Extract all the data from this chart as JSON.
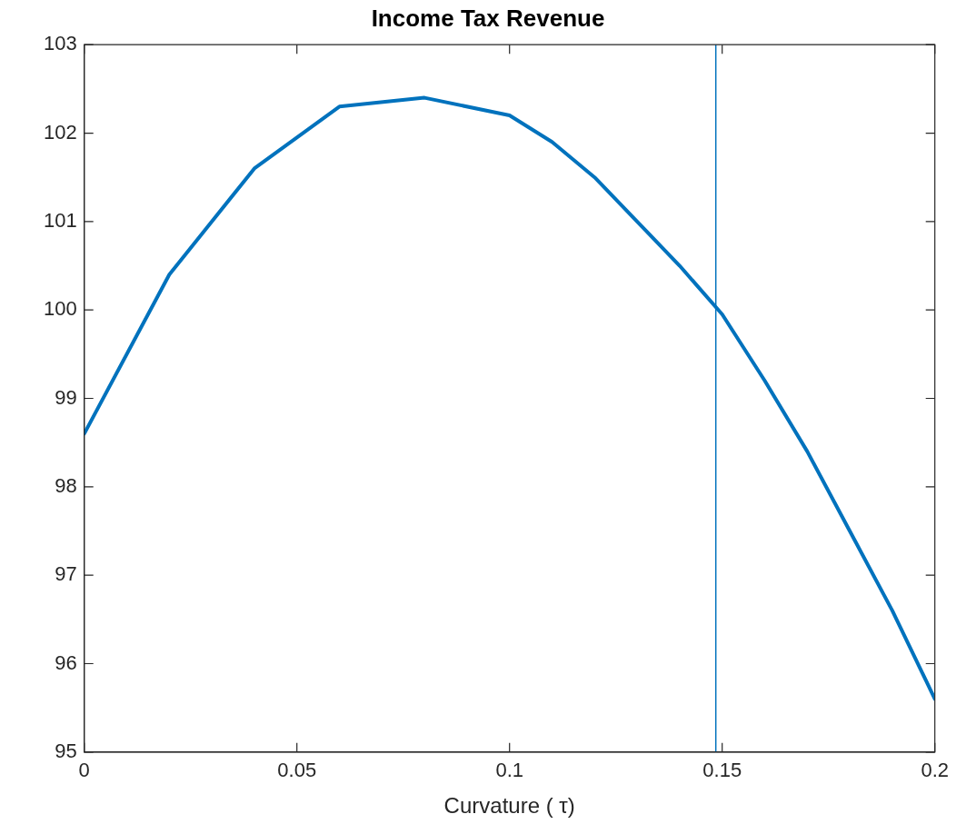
{
  "chart_data": {
    "type": "line",
    "title": "Income Tax Revenue",
    "xlabel": "Curvature ( τ)",
    "x": [
      0,
      0.02,
      0.04,
      0.06,
      0.08,
      0.1,
      0.11,
      0.12,
      0.13,
      0.14,
      0.15,
      0.16,
      0.17,
      0.18,
      0.19,
      0.2
    ],
    "series": [
      {
        "color": "#0072bd",
        "values": [
          98.6,
          100.4,
          101.6,
          102.3,
          102.4,
          102.2,
          101.9,
          101.5,
          101.0,
          100.5,
          99.95,
          99.2,
          98.4,
          97.5,
          96.6,
          95.6
        ]
      }
    ],
    "xlim": [
      0,
      0.2
    ],
    "xticks": [
      0,
      0.05,
      0.1,
      0.15,
      0.2
    ],
    "ylim": [
      95,
      103
    ],
    "yticks": [
      95,
      96,
      97,
      98,
      99,
      100,
      101,
      102,
      103
    ],
    "ref_lines": [
      {
        "axis": "x",
        "value": 0.1485,
        "color": "#0072bd"
      }
    ],
    "grid": false,
    "legend": false,
    "marker": "none",
    "line_style": "solid"
  }
}
